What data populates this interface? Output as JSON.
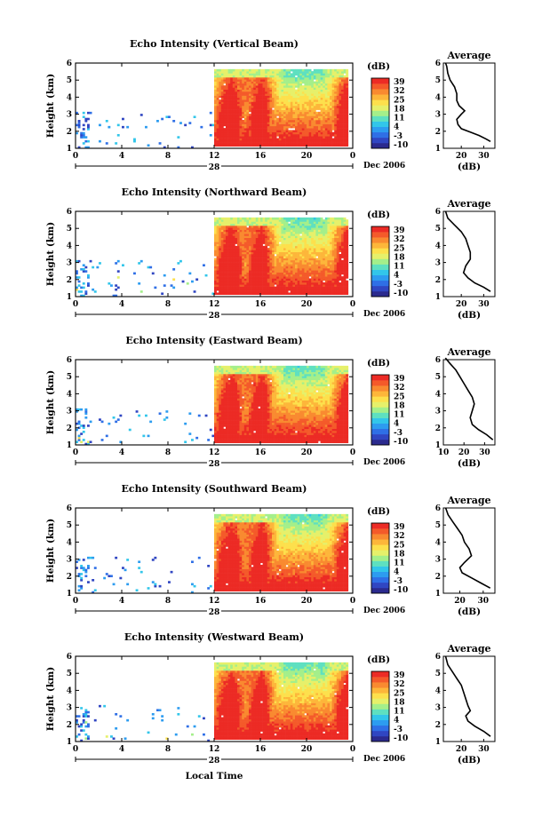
{
  "figure": {
    "common_xlabel": "Local Time",
    "colorbar": {
      "unit": "(dB)",
      "ticks": [
        "39",
        "32",
        "25",
        "18",
        "11",
        "4",
        "-3",
        "-10"
      ],
      "colors": [
        "#2b2a8e",
        "#3046c2",
        "#2f6fe6",
        "#2d9cf0",
        "#32c6ea",
        "#5ee0c0",
        "#a4ef8a",
        "#e6f06a",
        "#fde04c",
        "#fdb63a",
        "#f98a30",
        "#f45a2a",
        "#ec2b25"
      ]
    },
    "average_title": "Average",
    "average_xlabel": "(dB)"
  },
  "chart_data": [
    {
      "type": "heatmap",
      "title": "Echo Intensity (Vertical Beam)",
      "ylabel": "Height (km)",
      "xticks": [
        "0",
        "4",
        "8",
        "12",
        "16",
        "20",
        "0"
      ],
      "date_label": "28",
      "date_suffix": "Dec 2006",
      "xlim": [
        0,
        24
      ],
      "ylim": [
        1,
        6
      ],
      "yticks": [
        "1",
        "2",
        "3",
        "4",
        "5",
        "6"
      ],
      "average": {
        "xticks": [
          "20",
          "30"
        ],
        "xlim": [
          12,
          35
        ],
        "yticks": [
          "1",
          "2",
          "3",
          "4",
          "5",
          "6"
        ],
        "profile": [
          [
            33,
            1.4
          ],
          [
            31,
            1.55
          ],
          [
            28,
            1.75
          ],
          [
            24,
            1.95
          ],
          [
            20,
            2.15
          ],
          [
            18.5,
            2.4
          ],
          [
            18,
            2.7
          ],
          [
            20,
            3.0
          ],
          [
            21.5,
            3.2
          ],
          [
            19,
            3.5
          ],
          [
            18,
            3.8
          ],
          [
            18,
            4.2
          ],
          [
            17,
            4.6
          ],
          [
            15,
            5.0
          ],
          [
            14,
            5.4
          ],
          [
            13.5,
            5.8
          ],
          [
            13,
            6.0
          ]
        ]
      }
    },
    {
      "type": "heatmap",
      "title": "Echo Intensity (Northward Beam)",
      "ylabel": "Height (km)",
      "xticks": [
        "0",
        "4",
        "8",
        "12",
        "16",
        "20",
        "0"
      ],
      "date_label": "28",
      "date_suffix": "Dec 2006",
      "xlim": [
        0,
        24
      ],
      "ylim": [
        1,
        6
      ],
      "yticks": [
        "1",
        "2",
        "3",
        "4",
        "5",
        "6"
      ],
      "average": {
        "xticks": [
          "20",
          "30"
        ],
        "xlim": [
          12,
          35
        ],
        "yticks": [
          "1",
          "2",
          "3",
          "4",
          "5",
          "6"
        ],
        "profile": [
          [
            33,
            1.3
          ],
          [
            30,
            1.55
          ],
          [
            26,
            1.8
          ],
          [
            23,
            2.1
          ],
          [
            21,
            2.4
          ],
          [
            22,
            2.8
          ],
          [
            24,
            3.2
          ],
          [
            24,
            3.6
          ],
          [
            23,
            4.0
          ],
          [
            22,
            4.4
          ],
          [
            20,
            4.8
          ],
          [
            17,
            5.2
          ],
          [
            14,
            5.6
          ],
          [
            13,
            6.0
          ]
        ]
      }
    },
    {
      "type": "heatmap",
      "title": "Echo Intensity (Eastward Beam)",
      "ylabel": "Height (km)",
      "xticks": [
        "0",
        "4",
        "8",
        "12",
        "16",
        "20",
        "0"
      ],
      "date_label": "28",
      "date_suffix": "Dec 2006",
      "xlim": [
        0,
        24
      ],
      "ylim": [
        1,
        6
      ],
      "yticks": [
        "1",
        "2",
        "3",
        "4",
        "5",
        "6"
      ],
      "average": {
        "xticks": [
          "10",
          "20",
          "30"
        ],
        "xlim": [
          10,
          35
        ],
        "yticks": [
          "1",
          "2",
          "3",
          "4",
          "5",
          "6"
        ],
        "profile": [
          [
            34,
            1.3
          ],
          [
            31,
            1.6
          ],
          [
            27,
            1.9
          ],
          [
            24,
            2.2
          ],
          [
            23,
            2.6
          ],
          [
            24,
            3.0
          ],
          [
            25,
            3.4
          ],
          [
            24,
            3.8
          ],
          [
            22,
            4.2
          ],
          [
            20,
            4.6
          ],
          [
            18,
            5.0
          ],
          [
            16,
            5.4
          ],
          [
            13,
            5.8
          ],
          [
            11,
            6.1
          ]
        ]
      }
    },
    {
      "type": "heatmap",
      "title": "Echo Intensity (Southward Beam)",
      "ylabel": "Height (km)",
      "xticks": [
        "0",
        "4",
        "8",
        "12",
        "16",
        "20",
        "0"
      ],
      "date_label": "28",
      "date_suffix": "Dec 2006",
      "xlim": [
        0,
        24
      ],
      "ylim": [
        1,
        6
      ],
      "yticks": [
        "1",
        "2",
        "3",
        "4",
        "5",
        "6"
      ],
      "average": {
        "xticks": [
          "20",
          "30"
        ],
        "xlim": [
          13,
          35
        ],
        "yticks": [
          "1",
          "2",
          "3",
          "4",
          "5",
          "6"
        ],
        "profile": [
          [
            33,
            1.3
          ],
          [
            29,
            1.6
          ],
          [
            25,
            1.9
          ],
          [
            21,
            2.2
          ],
          [
            20,
            2.5
          ],
          [
            22,
            2.8
          ],
          [
            25,
            3.2
          ],
          [
            24,
            3.6
          ],
          [
            22,
            4.0
          ],
          [
            21,
            4.4
          ],
          [
            19,
            4.8
          ],
          [
            17,
            5.2
          ],
          [
            15,
            5.6
          ],
          [
            14,
            6.0
          ]
        ]
      }
    },
    {
      "type": "heatmap",
      "title": "Echo Intensity (Westward Beam)",
      "ylabel": "Height (km)",
      "xticks": [
        "0",
        "4",
        "8",
        "12",
        "16",
        "20",
        "0"
      ],
      "date_label": "28",
      "date_suffix": "Dec 2006",
      "xlim": [
        0,
        24
      ],
      "ylim": [
        1,
        6
      ],
      "yticks": [
        "1",
        "2",
        "3",
        "4",
        "5",
        "6"
      ],
      "average": {
        "xticks": [
          "20",
          "30"
        ],
        "xlim": [
          12,
          35
        ],
        "yticks": [
          "1",
          "2",
          "3",
          "4",
          "5",
          "6"
        ],
        "profile": [
          [
            33,
            1.3
          ],
          [
            30,
            1.6
          ],
          [
            26,
            1.9
          ],
          [
            23,
            2.2
          ],
          [
            22,
            2.5
          ],
          [
            24,
            2.8
          ],
          [
            23,
            3.1
          ],
          [
            22,
            3.5
          ],
          [
            21,
            3.9
          ],
          [
            20,
            4.3
          ],
          [
            18,
            4.7
          ],
          [
            16,
            5.1
          ],
          [
            14,
            5.5
          ],
          [
            13,
            6.0
          ]
        ]
      }
    }
  ]
}
